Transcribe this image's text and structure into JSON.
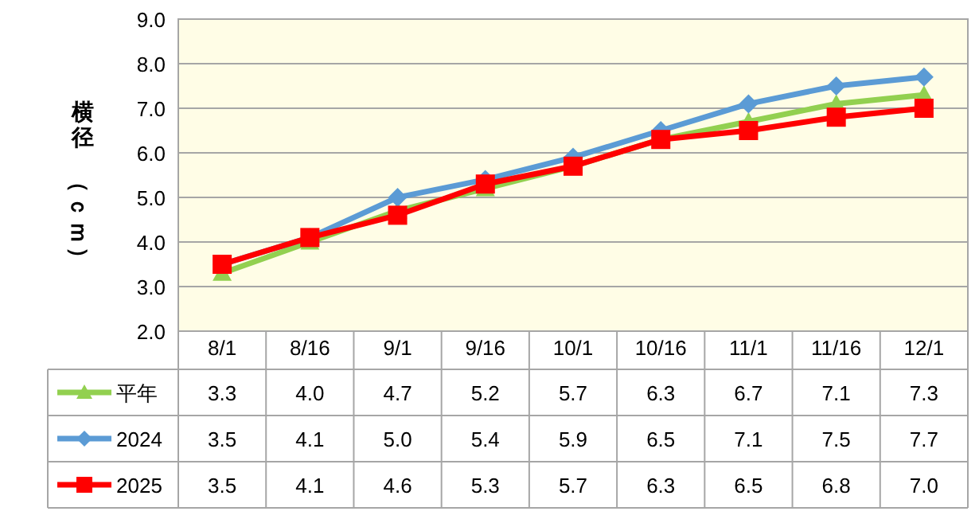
{
  "chart_data": {
    "type": "line",
    "ylabel": "横径（ｃｍ）",
    "categories": [
      "8/1",
      "8/16",
      "9/1",
      "9/16",
      "10/1",
      "10/16",
      "11/1",
      "11/16",
      "12/1"
    ],
    "series": [
      {
        "name": "平年",
        "color": "#92d050",
        "marker": "triangle",
        "values": [
          3.3,
          4.0,
          4.7,
          5.2,
          5.7,
          6.3,
          6.7,
          7.1,
          7.3
        ],
        "value_labels": [
          "3.3",
          "4.0",
          "4.7",
          "5.2",
          "5.7",
          "6.3",
          "6.7",
          "7.1",
          "7.3"
        ]
      },
      {
        "name": "2024",
        "color": "#5b9bd5",
        "marker": "diamond",
        "values": [
          3.5,
          4.1,
          5.0,
          5.4,
          5.9,
          6.5,
          7.1,
          7.5,
          7.7
        ],
        "value_labels": [
          "3.5",
          "4.1",
          "5.0",
          "5.4",
          "5.9",
          "6.5",
          "7.1",
          "7.5",
          "7.7"
        ]
      },
      {
        "name": "2025",
        "color": "#ff0000",
        "marker": "square",
        "values": [
          3.5,
          4.1,
          4.6,
          5.3,
          5.7,
          6.3,
          6.5,
          6.8,
          7.0
        ],
        "value_labels": [
          "3.5",
          "4.1",
          "4.6",
          "5.3",
          "5.7",
          "6.3",
          "6.5",
          "6.8",
          "7.0"
        ]
      }
    ],
    "ylim": [
      2,
      9
    ],
    "yticks": [
      {
        "value": 2,
        "label": "2.0"
      },
      {
        "value": 3,
        "label": "3.0"
      },
      {
        "value": 4,
        "label": "4.0"
      },
      {
        "value": 5,
        "label": "5.0"
      },
      {
        "value": 6,
        "label": "6.0"
      },
      {
        "value": 7,
        "label": "7.0"
      },
      {
        "value": 8,
        "label": "8.0"
      },
      {
        "value": 9,
        "label": "9.0"
      }
    ],
    "grid": "y",
    "legend": "bottom",
    "line_style": "solid"
  }
}
